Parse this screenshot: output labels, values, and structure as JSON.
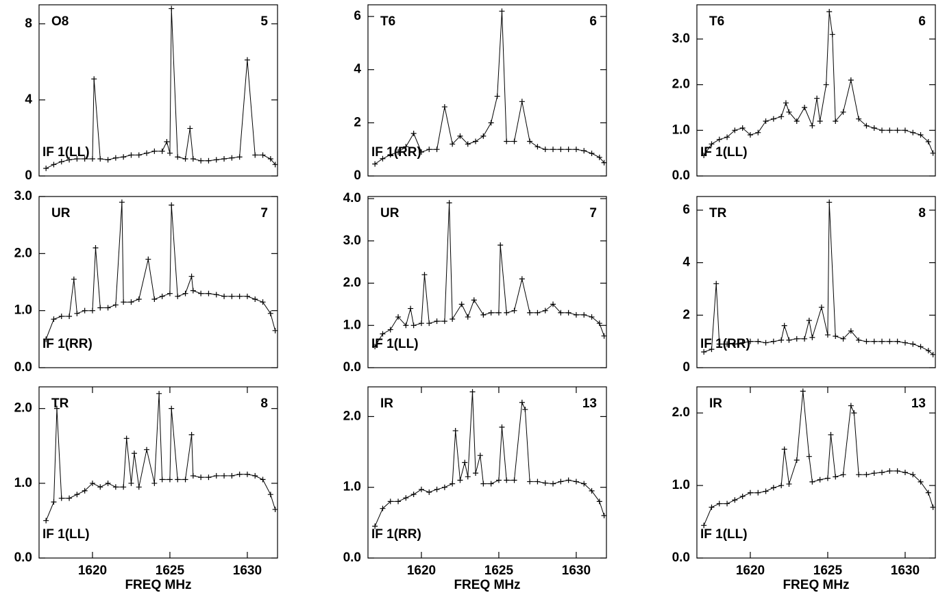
{
  "chart_data": [
    {
      "type": "line",
      "source": "O8",
      "number": "5",
      "polarization": "IF 1(LL)",
      "color": "#000000",
      "marker": "+",
      "xlim": [
        1616.55,
        1631.95
      ],
      "ylim": [
        0,
        9.0
      ],
      "yticks": [
        0,
        4,
        8
      ],
      "x": [
        1617,
        1617.5,
        1618,
        1618.5,
        1619,
        1619.5,
        1620,
        1620.1,
        1620.5,
        1621,
        1621.5,
        1622,
        1622.5,
        1623,
        1623.5,
        1624,
        1624.5,
        1624.8,
        1625,
        1625.1,
        1625.5,
        1626,
        1626.3,
        1626.5,
        1627,
        1627.5,
        1628,
        1628.5,
        1629,
        1629.5,
        1630,
        1630.5,
        1631,
        1631.5,
        1631.8
      ],
      "values": [
        0.4,
        0.6,
        0.75,
        0.85,
        0.9,
        0.9,
        0.9,
        5.1,
        0.9,
        0.85,
        0.95,
        1.0,
        1.1,
        1.1,
        1.2,
        1.3,
        1.3,
        1.8,
        1.2,
        8.8,
        1.0,
        0.9,
        2.5,
        0.9,
        0.8,
        0.8,
        0.85,
        0.9,
        0.95,
        1.0,
        6.1,
        1.1,
        1.1,
        0.9,
        0.6
      ]
    },
    {
      "type": "line",
      "source": "T6",
      "number": "6",
      "polarization": "IF 1(RR)",
      "color": "#000000",
      "marker": "+",
      "xlim": [
        1616.55,
        1631.95
      ],
      "ylim": [
        0,
        6.44
      ],
      "yticks": [
        0,
        2,
        4,
        6
      ],
      "x": [
        1617,
        1617.5,
        1618,
        1618.5,
        1619,
        1619.5,
        1620,
        1620.5,
        1621,
        1621.5,
        1622,
        1622.5,
        1623,
        1623.5,
        1624,
        1624.5,
        1624.9,
        1625.2,
        1625.5,
        1626,
        1626.5,
        1627,
        1627.5,
        1628,
        1628.5,
        1629,
        1629.5,
        1630,
        1630.5,
        1631,
        1631.5,
        1631.8
      ],
      "values": [
        0.45,
        0.65,
        0.8,
        0.9,
        1.1,
        1.6,
        0.9,
        1.0,
        1.0,
        2.6,
        1.2,
        1.5,
        1.2,
        1.3,
        1.5,
        2.0,
        3.0,
        6.2,
        1.3,
        1.3,
        2.8,
        1.3,
        1.1,
        1.0,
        1.0,
        1.0,
        1.0,
        1.0,
        0.95,
        0.85,
        0.7,
        0.5
      ]
    },
    {
      "type": "line",
      "source": "T6",
      "number": "6",
      "polarization": "IF 1(LL)",
      "color": "#000000",
      "marker": "+",
      "xlim": [
        1616.55,
        1631.95
      ],
      "ylim": [
        0,
        3.75
      ],
      "yticks": [
        {
          "value": 0,
          "label": "0.0"
        },
        {
          "value": 1,
          "label": "1.0"
        },
        {
          "value": 2,
          "label": "2.0"
        },
        {
          "value": 3,
          "label": "3.0"
        }
      ],
      "x": [
        1617,
        1617.5,
        1618,
        1618.5,
        1619,
        1619.5,
        1620,
        1620.5,
        1621,
        1621.5,
        1622,
        1622.3,
        1622.5,
        1623,
        1623.5,
        1624,
        1624.3,
        1624.5,
        1624.9,
        1625.1,
        1625.3,
        1625.5,
        1626,
        1626.5,
        1627,
        1627.5,
        1628,
        1628.5,
        1629,
        1629.5,
        1630,
        1630.5,
        1631,
        1631.5,
        1631.8
      ],
      "values": [
        0.45,
        0.7,
        0.8,
        0.85,
        1.0,
        1.05,
        0.9,
        0.95,
        1.2,
        1.25,
        1.3,
        1.6,
        1.4,
        1.2,
        1.5,
        1.1,
        1.7,
        1.2,
        2.0,
        3.6,
        3.1,
        1.2,
        1.4,
        2.1,
        1.25,
        1.1,
        1.05,
        1.0,
        1.0,
        1.0,
        1.0,
        0.95,
        0.9,
        0.75,
        0.5
      ]
    },
    {
      "type": "line",
      "source": "UR",
      "number": "7",
      "polarization": "IF 1(RR)",
      "color": "#000000",
      "marker": "+",
      "xlim": [
        1616.55,
        1631.95
      ],
      "ylim": [
        0,
        3.0
      ],
      "yticks": [
        {
          "value": 0,
          "label": "0.0"
        },
        {
          "value": 1,
          "label": "1.0"
        },
        {
          "value": 2,
          "label": "2.0"
        },
        {
          "value": 3,
          "label": "3.0"
        }
      ],
      "x": [
        1617,
        1617.5,
        1618,
        1618.5,
        1618.8,
        1619,
        1619.5,
        1620,
        1620.2,
        1620.5,
        1621,
        1621.5,
        1621.9,
        1622,
        1622.5,
        1623,
        1623.6,
        1624,
        1624.5,
        1625,
        1625.1,
        1625.5,
        1626,
        1626.4,
        1626.5,
        1627,
        1627.5,
        1628,
        1628.5,
        1629,
        1629.5,
        1630,
        1630.5,
        1631,
        1631.5,
        1631.8
      ],
      "values": [
        0.5,
        0.85,
        0.9,
        0.9,
        1.55,
        0.95,
        1.0,
        1.0,
        2.1,
        1.05,
        1.05,
        1.1,
        2.9,
        1.15,
        1.15,
        1.2,
        1.9,
        1.2,
        1.25,
        1.3,
        2.85,
        1.25,
        1.3,
        1.6,
        1.35,
        1.3,
        1.3,
        1.28,
        1.25,
        1.25,
        1.25,
        1.25,
        1.2,
        1.15,
        0.95,
        0.65
      ]
    },
    {
      "type": "line",
      "source": "UR",
      "number": "7",
      "polarization": "IF 1(LL)",
      "color": "#000000",
      "marker": "+",
      "xlim": [
        1616.55,
        1631.95
      ],
      "ylim": [
        0,
        4.05
      ],
      "yticks": [
        {
          "value": 0,
          "label": "0.0"
        },
        {
          "value": 1,
          "label": "1.0"
        },
        {
          "value": 2,
          "label": "2.0"
        },
        {
          "value": 3,
          "label": "3.0"
        },
        {
          "value": 4,
          "label": "4.0"
        }
      ],
      "x": [
        1617,
        1617.5,
        1618,
        1618.5,
        1619,
        1619.3,
        1619.5,
        1620,
        1620.2,
        1620.5,
        1621,
        1621.5,
        1621.8,
        1622,
        1622.6,
        1623,
        1623.4,
        1624,
        1624.5,
        1625,
        1625.1,
        1625.5,
        1626,
        1626.5,
        1627,
        1627.5,
        1628,
        1628.5,
        1629,
        1629.5,
        1630,
        1630.5,
        1631,
        1631.5,
        1631.8
      ],
      "values": [
        0.5,
        0.8,
        0.9,
        1.2,
        1.0,
        1.4,
        1.0,
        1.05,
        2.2,
        1.05,
        1.1,
        1.1,
        3.9,
        1.15,
        1.5,
        1.2,
        1.6,
        1.25,
        1.3,
        1.3,
        2.9,
        1.3,
        1.35,
        2.1,
        1.3,
        1.3,
        1.35,
        1.5,
        1.3,
        1.3,
        1.25,
        1.25,
        1.2,
        1.05,
        0.75
      ]
    },
    {
      "type": "line",
      "source": "TR",
      "number": "8",
      "polarization": "IF 1(RR)",
      "color": "#000000",
      "marker": "+",
      "xlim": [
        1616.55,
        1631.95
      ],
      "ylim": [
        0,
        6.52
      ],
      "yticks": [
        0,
        2,
        4,
        6
      ],
      "x": [
        1617,
        1617.5,
        1617.8,
        1618,
        1618.5,
        1619,
        1619.5,
        1620,
        1620.5,
        1621,
        1621.5,
        1622,
        1622.2,
        1622.5,
        1623,
        1623.5,
        1623.8,
        1624,
        1624.6,
        1625,
        1625.1,
        1625.5,
        1626,
        1626.5,
        1627,
        1627.5,
        1628,
        1628.5,
        1629,
        1629.5,
        1630,
        1630.5,
        1631,
        1631.5,
        1631.8
      ],
      "values": [
        0.6,
        0.7,
        3.2,
        0.9,
        0.9,
        0.9,
        0.95,
        1.0,
        1.0,
        0.95,
        1.0,
        1.05,
        1.6,
        1.05,
        1.1,
        1.1,
        1.8,
        1.15,
        2.3,
        1.25,
        6.3,
        1.2,
        1.1,
        1.4,
        1.05,
        1.0,
        1.0,
        1.0,
        1.0,
        1.0,
        0.95,
        0.9,
        0.8,
        0.65,
        0.5
      ]
    },
    {
      "type": "line",
      "source": "TR",
      "number": "8",
      "polarization": "IF 1(LL)",
      "color": "#000000",
      "marker": "+",
      "xlim": [
        1616.55,
        1631.95
      ],
      "ylim": [
        0,
        2.29
      ],
      "yticks": [
        {
          "value": 0,
          "label": "0.0"
        },
        {
          "value": 1,
          "label": "1.0"
        },
        {
          "value": 2,
          "label": "2.0"
        }
      ],
      "xticks": [
        1620,
        1625,
        1630
      ],
      "xlabel": "FREQ MHz",
      "x": [
        1617,
        1617.5,
        1617.7,
        1618,
        1618.5,
        1619,
        1619.5,
        1620,
        1620.5,
        1621,
        1621.5,
        1622,
        1622.2,
        1622.5,
        1622.7,
        1623,
        1623.5,
        1624,
        1624.3,
        1624.5,
        1625,
        1625.1,
        1625.5,
        1626,
        1626.4,
        1626.5,
        1627,
        1627.5,
        1628,
        1628.5,
        1629,
        1629.5,
        1630,
        1630.5,
        1631,
        1631.5,
        1631.8
      ],
      "values": [
        0.5,
        0.75,
        2.0,
        0.8,
        0.8,
        0.85,
        0.9,
        1.0,
        0.95,
        1.0,
        0.95,
        0.95,
        1.6,
        1.0,
        1.4,
        0.95,
        1.45,
        1.0,
        2.2,
        1.05,
        1.05,
        2.0,
        1.05,
        1.05,
        1.65,
        1.1,
        1.08,
        1.08,
        1.1,
        1.1,
        1.1,
        1.12,
        1.12,
        1.1,
        1.05,
        0.85,
        0.65
      ]
    },
    {
      "type": "line",
      "source": "IR",
      "number": "13",
      "polarization": "IF 1(RR)",
      "color": "#000000",
      "marker": "+",
      "xlim": [
        1616.55,
        1631.95
      ],
      "ylim": [
        0,
        2.42
      ],
      "yticks": [
        {
          "value": 0,
          "label": "0.0"
        },
        {
          "value": 1,
          "label": "1.0"
        },
        {
          "value": 2,
          "label": "2.0"
        }
      ],
      "xticks": [
        1620,
        1625,
        1630
      ],
      "xlabel": "FREQ MHz",
      "x": [
        1617,
        1617.5,
        1618,
        1618.5,
        1619,
        1619.5,
        1620,
        1620.5,
        1621,
        1621.5,
        1622,
        1622.2,
        1622.5,
        1622.8,
        1623,
        1623.3,
        1623.5,
        1623.8,
        1624,
        1624.5,
        1625,
        1625.2,
        1625.5,
        1626,
        1626.5,
        1626.7,
        1627,
        1627.5,
        1628,
        1628.5,
        1629,
        1629.5,
        1630,
        1630.5,
        1631,
        1631.5,
        1631.8
      ],
      "values": [
        0.45,
        0.7,
        0.8,
        0.8,
        0.85,
        0.9,
        0.97,
        0.93,
        0.97,
        1.0,
        1.05,
        1.8,
        1.1,
        1.35,
        1.15,
        2.35,
        1.2,
        1.45,
        1.05,
        1.05,
        1.1,
        1.85,
        1.1,
        1.1,
        2.2,
        2.1,
        1.08,
        1.08,
        1.06,
        1.05,
        1.08,
        1.1,
        1.08,
        1.05,
        0.95,
        0.8,
        0.6
      ]
    },
    {
      "type": "line",
      "source": "IR",
      "number": "13",
      "polarization": "IF 1(LL)",
      "color": "#000000",
      "marker": "+",
      "xlim": [
        1616.55,
        1631.95
      ],
      "ylim": [
        0,
        2.36
      ],
      "yticks": [
        {
          "value": 0,
          "label": "0.0"
        },
        {
          "value": 1,
          "label": "1.0"
        },
        {
          "value": 2,
          "label": "2.0"
        }
      ],
      "xticks": [
        1620,
        1625,
        1630
      ],
      "xlabel": "FREQ MHz",
      "x": [
        1617,
        1617.5,
        1618,
        1618.5,
        1619,
        1619.5,
        1620,
        1620.5,
        1621,
        1621.5,
        1622,
        1622.2,
        1622.5,
        1623,
        1623.4,
        1623.8,
        1624,
        1624.5,
        1625,
        1625.2,
        1625.5,
        1626,
        1626.5,
        1626.7,
        1627,
        1627.5,
        1628,
        1628.5,
        1629,
        1629.5,
        1630,
        1630.5,
        1631,
        1631.5,
        1631.8
      ],
      "values": [
        0.45,
        0.7,
        0.75,
        0.75,
        0.8,
        0.85,
        0.9,
        0.9,
        0.92,
        0.97,
        1.0,
        1.5,
        1.02,
        1.35,
        2.3,
        1.4,
        1.05,
        1.08,
        1.1,
        1.7,
        1.12,
        1.15,
        2.1,
        2.0,
        1.15,
        1.15,
        1.17,
        1.18,
        1.2,
        1.2,
        1.18,
        1.15,
        1.05,
        0.9,
        0.7
      ]
    }
  ]
}
